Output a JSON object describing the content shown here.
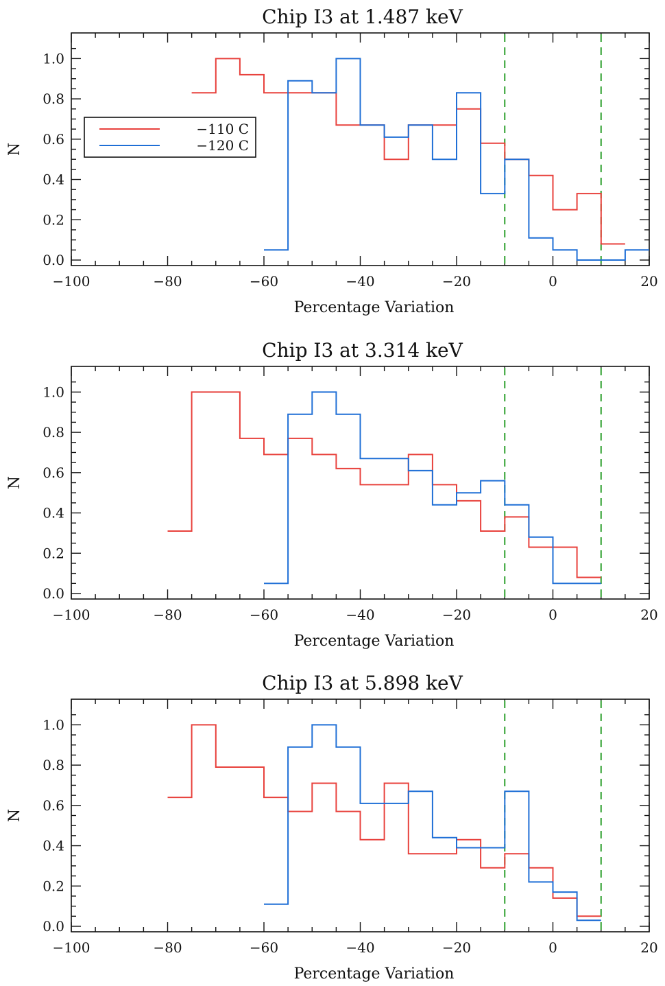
{
  "chart_data": [
    {
      "type": "line",
      "step": true,
      "title": "Chip I3 at 1.487 keV",
      "xlabel": "Percentage Variation",
      "ylabel": "N",
      "xlim": [
        -100,
        20
      ],
      "ylim": [
        0,
        1.1
      ],
      "xticks": [
        "-100",
        "-80",
        "-60",
        "-40",
        "-20",
        "0",
        "20"
      ],
      "yticks": [
        "0.0",
        "0.2",
        "0.4",
        "0.6",
        "0.8",
        "1.0"
      ],
      "reference_lines_x": [
        -10,
        10
      ],
      "legend": {
        "position": "upper-left",
        "entries": [
          {
            "label": "−110 C",
            "color": "#e8413c"
          },
          {
            "label": "−120 C",
            "color": "#1f6fd6"
          }
        ]
      },
      "series": [
        {
          "name": "−110 C",
          "color": "#e8413c",
          "bin_start": -75,
          "bin_width": 5,
          "values": [
            0.83,
            1.0,
            0.92,
            0.83,
            0.83,
            0.83,
            0.67,
            0.67,
            0.5,
            0.67,
            0.67,
            0.75,
            0.58,
            0.5,
            0.42,
            0.25,
            0.33,
            0.08
          ]
        },
        {
          "name": "−120 C",
          "color": "#1f6fd6",
          "bin_start": -60,
          "bin_width": 5,
          "values": [
            0.05,
            0.89,
            0.83,
            1.0,
            0.67,
            0.61,
            0.67,
            0.5,
            0.83,
            0.33,
            0.5,
            0.11,
            0.05,
            0.0,
            0.0,
            0.05
          ]
        }
      ]
    },
    {
      "type": "line",
      "step": true,
      "title": "Chip I3 at 3.314 keV",
      "xlabel": "Percentage Variation",
      "ylabel": "N",
      "xlim": [
        -100,
        20
      ],
      "ylim": [
        0,
        1.1
      ],
      "xticks": [
        "-100",
        "-80",
        "-60",
        "-40",
        "-20",
        "0",
        "20"
      ],
      "yticks": [
        "0.0",
        "0.2",
        "0.4",
        "0.6",
        "0.8",
        "1.0"
      ],
      "reference_lines_x": [
        -10,
        10
      ],
      "series": [
        {
          "name": "−110 C",
          "color": "#e8413c",
          "bin_start": -80,
          "bin_width": 5,
          "values": [
            0.31,
            1.0,
            1.0,
            0.77,
            0.69,
            0.77,
            0.69,
            0.62,
            0.54,
            0.54,
            0.69,
            0.54,
            0.46,
            0.31,
            0.38,
            0.23,
            0.23,
            0.08
          ]
        },
        {
          "name": "−120 C",
          "color": "#1f6fd6",
          "bin_start": -60,
          "bin_width": 5,
          "values": [
            0.05,
            0.89,
            1.0,
            0.89,
            0.67,
            0.67,
            0.61,
            0.44,
            0.5,
            0.56,
            0.44,
            0.28,
            0.05,
            0.05
          ]
        }
      ]
    },
    {
      "type": "line",
      "step": true,
      "title": "Chip I3 at 5.898 keV",
      "xlabel": "Percentage Variation",
      "ylabel": "N",
      "xlim": [
        -100,
        20
      ],
      "ylim": [
        0,
        1.1
      ],
      "xticks": [
        "-100",
        "-80",
        "-60",
        "-40",
        "-20",
        "0",
        "20"
      ],
      "yticks": [
        "0.0",
        "0.2",
        "0.4",
        "0.6",
        "0.8",
        "1.0"
      ],
      "reference_lines_x": [
        -10,
        10
      ],
      "series": [
        {
          "name": "−110 C",
          "color": "#e8413c",
          "bin_start": -80,
          "bin_width": 5,
          "values": [
            0.64,
            1.0,
            0.79,
            0.79,
            0.64,
            0.57,
            0.71,
            0.57,
            0.43,
            0.71,
            0.36,
            0.36,
            0.43,
            0.29,
            0.36,
            0.29,
            0.14,
            0.05
          ]
        },
        {
          "name": "−120 C",
          "color": "#1f6fd6",
          "bin_start": -60,
          "bin_width": 5,
          "values": [
            0.11,
            0.89,
            1.0,
            0.89,
            0.61,
            0.61,
            0.67,
            0.44,
            0.39,
            0.39,
            0.67,
            0.22,
            0.17,
            0.03
          ]
        }
      ]
    }
  ]
}
